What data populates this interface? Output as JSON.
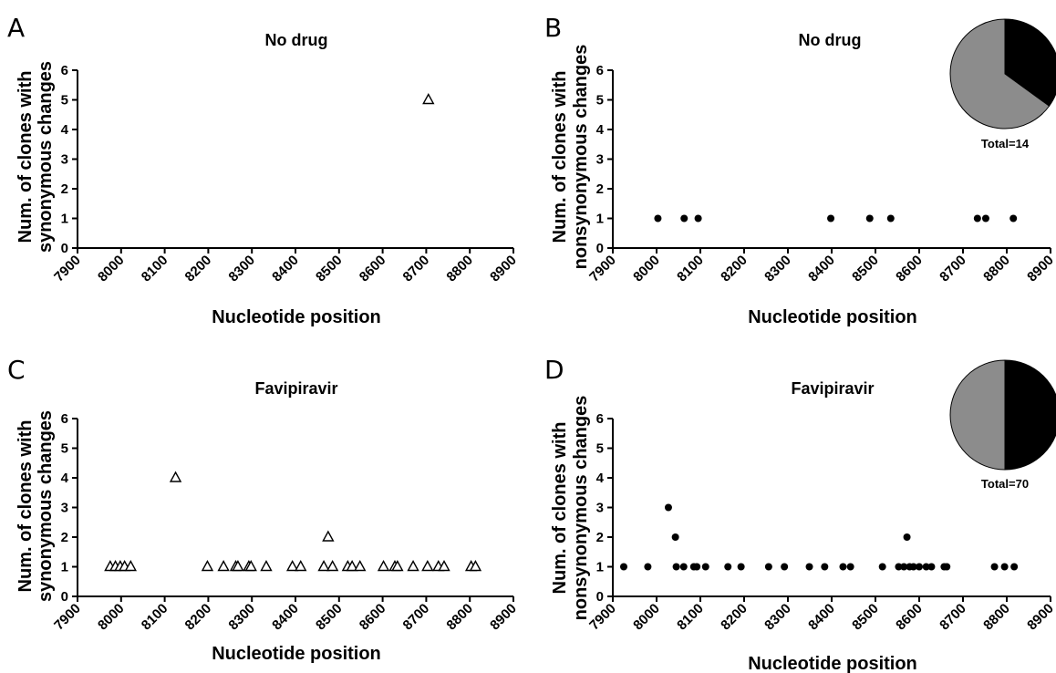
{
  "chart_data": [
    {
      "panel": "A",
      "type": "scatter",
      "title": "No drug",
      "xlabel": "Nucleotide position",
      "ylabel": [
        "Num. of clones with",
        "synonymous changes"
      ],
      "xlim": [
        7900,
        8900
      ],
      "ylim": [
        0,
        6
      ],
      "xticks": [
        "7900",
        "8000",
        "8100",
        "8200",
        "8300",
        "8400",
        "8500",
        "8600",
        "8700",
        "8800",
        "8900"
      ],
      "yticks": [
        "0",
        "1",
        "2",
        "3",
        "4",
        "5",
        "6"
      ],
      "marker": "triangle-open",
      "points": [
        [
          8705,
          5
        ]
      ]
    },
    {
      "panel": "B",
      "type": "scatter",
      "title": "No drug",
      "xlabel": "Nucleotide position",
      "ylabel": [
        "Num. of clones with",
        "nonsynonymous changes"
      ],
      "xlim": [
        7900,
        8900
      ],
      "ylim": [
        0,
        6
      ],
      "xticks": [
        "7900",
        "8000",
        "8100",
        "8200",
        "8300",
        "8400",
        "8500",
        "8600",
        "8700",
        "8800",
        "8900"
      ],
      "yticks": [
        "0",
        "1",
        "2",
        "3",
        "4",
        "5",
        "6"
      ],
      "marker": "circle-filled",
      "points": [
        [
          8003,
          1
        ],
        [
          8063,
          1
        ],
        [
          8095,
          1
        ],
        [
          8398,
          1
        ],
        [
          8487,
          1
        ],
        [
          8535,
          1
        ],
        [
          8733,
          1
        ],
        [
          8752,
          1
        ],
        [
          8815,
          1
        ]
      ],
      "pie": {
        "label": "Total=14",
        "slices": [
          {
            "value": 0.35,
            "color": "#000000"
          },
          {
            "value": 0.65,
            "color": "#8c8c8c"
          }
        ]
      }
    },
    {
      "panel": "C",
      "type": "scatter",
      "title": "Favipiravir",
      "xlabel": "Nucleotide position",
      "ylabel": [
        "Num. of clones with",
        "synonymous changes"
      ],
      "xlim": [
        7900,
        8900
      ],
      "ylim": [
        0,
        6
      ],
      "xticks": [
        "7900",
        "8000",
        "8100",
        "8200",
        "8300",
        "8400",
        "8500",
        "8600",
        "8700",
        "8800",
        "8900"
      ],
      "yticks": [
        "0",
        "1",
        "2",
        "3",
        "4",
        "5",
        "6"
      ],
      "marker": "triangle-open",
      "points": [
        [
          7975,
          1
        ],
        [
          7987,
          1
        ],
        [
          7998,
          1
        ],
        [
          8008,
          1
        ],
        [
          8022,
          1
        ],
        [
          8125,
          4
        ],
        [
          8198,
          1
        ],
        [
          8235,
          1
        ],
        [
          8263,
          1
        ],
        [
          8268,
          1
        ],
        [
          8293,
          1
        ],
        [
          8298,
          1
        ],
        [
          8333,
          1
        ],
        [
          8393,
          1
        ],
        [
          8412,
          1
        ],
        [
          8465,
          1
        ],
        [
          8475,
          2
        ],
        [
          8485,
          1
        ],
        [
          8520,
          1
        ],
        [
          8530,
          1
        ],
        [
          8548,
          1
        ],
        [
          8602,
          1
        ],
        [
          8628,
          1
        ],
        [
          8634,
          1
        ],
        [
          8670,
          1
        ],
        [
          8703,
          1
        ],
        [
          8728,
          1
        ],
        [
          8741,
          1
        ],
        [
          8803,
          1
        ],
        [
          8813,
          1
        ]
      ]
    },
    {
      "panel": "D",
      "type": "scatter",
      "title": "Favipiravir",
      "xlabel": "Nucleotide position",
      "ylabel": [
        "Num. of clones with",
        "nonsynonymous changes"
      ],
      "xlim": [
        7900,
        8900
      ],
      "ylim": [
        0,
        6
      ],
      "xticks": [
        "7900",
        "8000",
        "8100",
        "8200",
        "8300",
        "8400",
        "8500",
        "8600",
        "8700",
        "8800",
        "8900"
      ],
      "yticks": [
        "0",
        "1",
        "2",
        "3",
        "4",
        "5",
        "6"
      ],
      "marker": "circle-filled",
      "points": [
        [
          7925,
          1
        ],
        [
          7980,
          1
        ],
        [
          8027,
          3
        ],
        [
          8043,
          2
        ],
        [
          8045,
          1
        ],
        [
          8062,
          1
        ],
        [
          8085,
          1
        ],
        [
          8092,
          1
        ],
        [
          8112,
          1
        ],
        [
          8163,
          1
        ],
        [
          8193,
          1
        ],
        [
          8256,
          1
        ],
        [
          8292,
          1
        ],
        [
          8349,
          1
        ],
        [
          8384,
          1
        ],
        [
          8426,
          1
        ],
        [
          8443,
          1
        ],
        [
          8516,
          1
        ],
        [
          8553,
          1
        ],
        [
          8565,
          1
        ],
        [
          8572,
          2
        ],
        [
          8578,
          1
        ],
        [
          8587,
          1
        ],
        [
          8600,
          1
        ],
        [
          8616,
          1
        ],
        [
          8628,
          1
        ],
        [
          8657,
          1
        ],
        [
          8663,
          1
        ],
        [
          8772,
          1
        ],
        [
          8795,
          1
        ],
        [
          8817,
          1
        ]
      ],
      "pie": {
        "label": "Total=70",
        "slices": [
          {
            "value": 0.5,
            "color": "#000000"
          },
          {
            "value": 0.5,
            "color": "#8c8c8c"
          }
        ]
      }
    }
  ]
}
